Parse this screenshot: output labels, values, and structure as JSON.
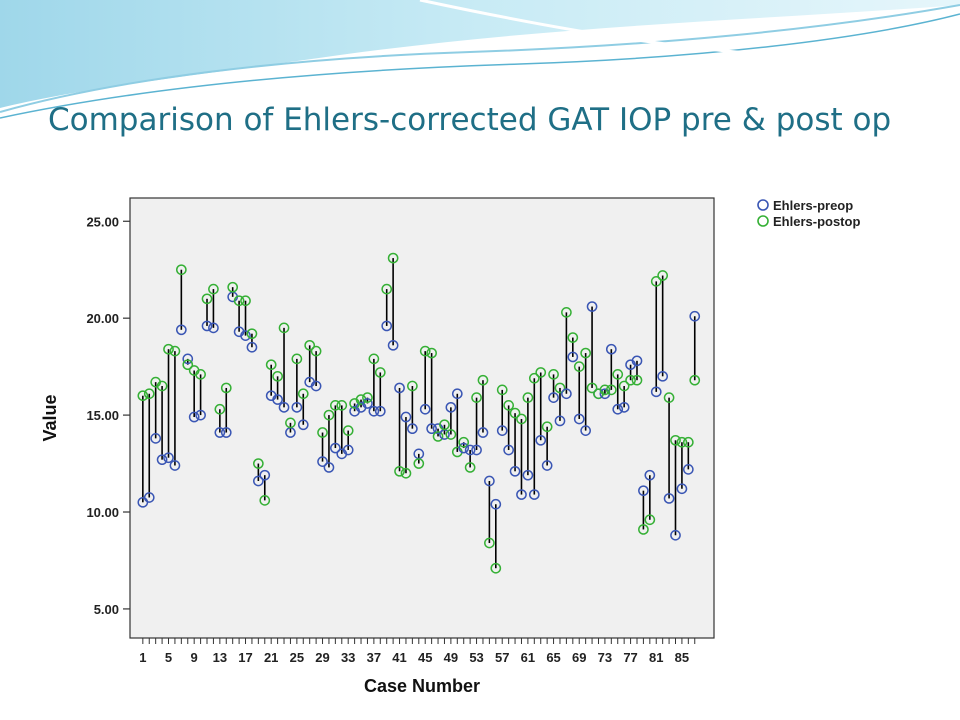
{
  "slide": {
    "title": "Comparison of Ehlers-corrected GAT IOP pre & post op"
  },
  "colors": {
    "title": "#1f6f86",
    "preop": "#3a56b4",
    "postop": "#35b035",
    "plot_background": "#f0f0f0",
    "connector": "#000000"
  },
  "chart_data": {
    "type": "dot-dumbbell",
    "xlabel": "Case Number",
    "ylabel": "Value",
    "ylim": [
      3.5,
      26.2
    ],
    "xlim": [
      -1,
      90
    ],
    "yticks": [
      "5.00",
      "10.00",
      "15.00",
      "20.00",
      "25.00"
    ],
    "xticks": [
      1,
      5,
      9,
      13,
      17,
      21,
      25,
      29,
      33,
      37,
      41,
      45,
      49,
      53,
      57,
      61,
      65,
      69,
      73,
      77,
      81,
      85
    ],
    "legend_position": "top-right",
    "x": [
      1,
      2,
      3,
      4,
      5,
      6,
      7,
      8,
      9,
      10,
      11,
      12,
      13,
      14,
      15,
      16,
      17,
      18,
      19,
      20,
      21,
      22,
      23,
      24,
      25,
      26,
      27,
      28,
      29,
      30,
      31,
      32,
      33,
      34,
      35,
      36,
      37,
      38,
      39,
      40,
      41,
      42,
      43,
      44,
      45,
      46,
      47,
      48,
      49,
      50,
      51,
      52,
      53,
      54,
      55,
      56,
      57,
      58,
      59,
      60,
      61,
      62,
      63,
      64,
      65,
      66,
      67,
      68,
      69,
      70,
      71,
      72,
      73,
      74,
      75,
      76,
      77,
      78,
      79,
      80,
      81,
      82,
      83,
      84,
      85,
      86,
      87
    ],
    "series": [
      {
        "name": "Ehlers-preop",
        "values": [
          10.5,
          10.75,
          13.8,
          12.7,
          12.8,
          12.4,
          19.4,
          17.9,
          14.9,
          15,
          19.6,
          19.5,
          14.1,
          14.1,
          21.1,
          19.3,
          19.1,
          18.5,
          11.6,
          11.9,
          16,
          15.8,
          15.4,
          14.1,
          15.4,
          14.5,
          16.7,
          16.5,
          12.6,
          12.3,
          13.3,
          13,
          13.2,
          15.2,
          15.4,
          15.6,
          15.2,
          15.2,
          19.6,
          18.6,
          16.4,
          14.9,
          14.3,
          13,
          15.3,
          14.3,
          14.3,
          14,
          15.4,
          16.1,
          13.3,
          13.2,
          13.2,
          14.1,
          11.6,
          10.4,
          14.2,
          13.2,
          12.1,
          10.9,
          11.9,
          10.9,
          13.7,
          12.4,
          15.9,
          14.7,
          16.1,
          18,
          14.8,
          14.2,
          20.6,
          16.1,
          16.1,
          18.4,
          15.3,
          15.4,
          17.6,
          17.8,
          11.1,
          11.9,
          16.2,
          17,
          10.7,
          8.8,
          11.2,
          12.2,
          20.1
        ],
        "series_note": ""
      },
      {
        "name": "Ehlers-postop",
        "values": [
          16,
          16.1,
          16.7,
          16.5,
          18.4,
          18.3,
          22.5,
          17.6,
          17.3,
          17.1,
          21,
          21.5,
          15.3,
          16.4,
          21.6,
          20.9,
          20.9,
          19.2,
          12.5,
          10.6,
          17.6,
          17,
          19.5,
          14.6,
          17.9,
          16.1,
          18.6,
          18.3,
          14.1,
          15,
          15.5,
          15.5,
          14.2,
          15.6,
          15.8,
          15.9,
          17.9,
          17.2,
          21.5,
          23.1,
          12.1,
          12,
          16.5,
          12.5,
          18.3,
          18.2,
          13.9,
          14.5,
          14,
          13.1,
          13.6,
          12.3,
          15.9,
          16.8,
          8.4,
          7.1,
          16.3,
          15.5,
          15.1,
          14.8,
          15.9,
          16.9,
          17.2,
          14.4,
          17.1,
          16.4,
          20.3,
          19,
          17.5,
          18.2,
          16.4,
          16.1,
          16.3,
          16.3,
          17.1,
          16.5,
          16.8,
          16.8,
          9.1,
          9.6,
          21.9,
          22.2,
          15.9,
          13.7,
          13.6,
          13.6,
          16.8
        ]
      }
    ]
  }
}
